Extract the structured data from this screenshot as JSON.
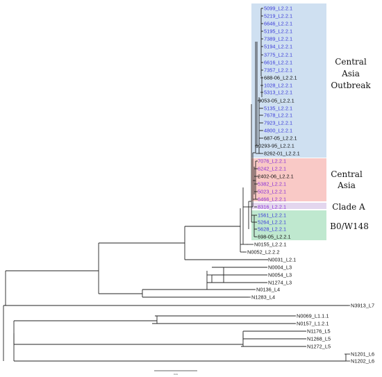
{
  "colors": {
    "blue": "#3a3ad8",
    "purple": "#8a2fd6",
    "black": "#111111",
    "outbreak_box": "#cfe0f1",
    "central_asia_box": "#f9c9c6",
    "clade_a_box": "#e3d6ee",
    "bw148_box": "#bfe8cf"
  },
  "clades": [
    {
      "id": "outbreak",
      "lines": [
        "Central",
        "Asia",
        "Outbreak"
      ],
      "color_key": "outbreak_box"
    },
    {
      "id": "central_asia",
      "lines": [
        "Central",
        "Asia"
      ],
      "color_key": "central_asia_box"
    },
    {
      "id": "clade_a",
      "lines": [
        "Clade A"
      ],
      "color_key": "clade_a_box"
    },
    {
      "id": "bw148",
      "lines": [
        "B0/W148"
      ],
      "color_key": "bw148_box"
    }
  ],
  "leaves": [
    {
      "label": "5099_L2.2.1",
      "color": "blue"
    },
    {
      "label": "5219_L2.2.1",
      "color": "blue"
    },
    {
      "label": "6646_L2.2.1",
      "color": "blue"
    },
    {
      "label": "5195_L2.2.1",
      "color": "blue"
    },
    {
      "label": "7389_L2.2.1",
      "color": "blue"
    },
    {
      "label": "5194_L2.2.1",
      "color": "blue"
    },
    {
      "label": "3775_L2.2.1",
      "color": "blue"
    },
    {
      "label": "6616_L2.2.1",
      "color": "blue"
    },
    {
      "label": "7357_L2.2.1",
      "color": "blue"
    },
    {
      "label": "688-06_L2.2.1",
      "color": "black"
    },
    {
      "label": "1028_L2.2.1",
      "color": "blue"
    },
    {
      "label": "5313_L2.2.1",
      "color": "blue"
    },
    {
      "label": "9053-05_L2.2.1",
      "color": "black"
    },
    {
      "label": "5135_L2.2.1",
      "color": "blue"
    },
    {
      "label": "7678_L2.2.1",
      "color": "blue"
    },
    {
      "label": "7923_L2.2.1",
      "color": "blue"
    },
    {
      "label": "4800_L2.2.1",
      "color": "blue"
    },
    {
      "label": "687-05_L2.2.1",
      "color": "black"
    },
    {
      "label": "10293-95_L2.2.1",
      "color": "black"
    },
    {
      "label": "8262-01_L2.2.1",
      "color": "black"
    },
    {
      "label": "7076_L2.2.1",
      "color": "purple"
    },
    {
      "label": "6242_L2.2.1",
      "color": "purple"
    },
    {
      "label": "2402-06_L2.2.1",
      "color": "black"
    },
    {
      "label": "5382_L2.2.1",
      "color": "purple"
    },
    {
      "label": "5023_L2.2.1",
      "color": "purple"
    },
    {
      "label": "6466_L2.2.1",
      "color": "purple"
    },
    {
      "label": "8316_L2.2.1",
      "color": "purple"
    },
    {
      "label": "1561_L2.2.1",
      "color": "blue"
    },
    {
      "label": "5264_L2.2.1",
      "color": "blue"
    },
    {
      "label": "5628_L2.2.1",
      "color": "blue"
    },
    {
      "label": "698-05_L2.2.1",
      "color": "black"
    },
    {
      "label": "N0155_L2.2.1",
      "color": "black"
    },
    {
      "label": "N0052_L2.2.2",
      "color": "black"
    },
    {
      "label": "N0031_L2.1",
      "color": "black"
    },
    {
      "label": "N0004_L3",
      "color": "black"
    },
    {
      "label": "N0054_L3",
      "color": "black"
    },
    {
      "label": "N1274_L3",
      "color": "black"
    },
    {
      "label": "N0136_L4",
      "color": "black"
    },
    {
      "label": "N1283_L4",
      "color": "black"
    },
    {
      "label": "N3913_L7",
      "color": "black"
    },
    {
      "label": "N0069_L1.1.1",
      "color": "black"
    },
    {
      "label": "N0157_L1.2.1",
      "color": "black"
    },
    {
      "label": "N1176_L5",
      "color": "black"
    },
    {
      "label": "N1268_L5",
      "color": "black"
    },
    {
      "label": "N1272_L5",
      "color": "black"
    },
    {
      "label": "N1201_L6",
      "color": "black"
    },
    {
      "label": "N1202_L6",
      "color": "black"
    }
  ],
  "scale_bar": {
    "label": "0.01"
  }
}
